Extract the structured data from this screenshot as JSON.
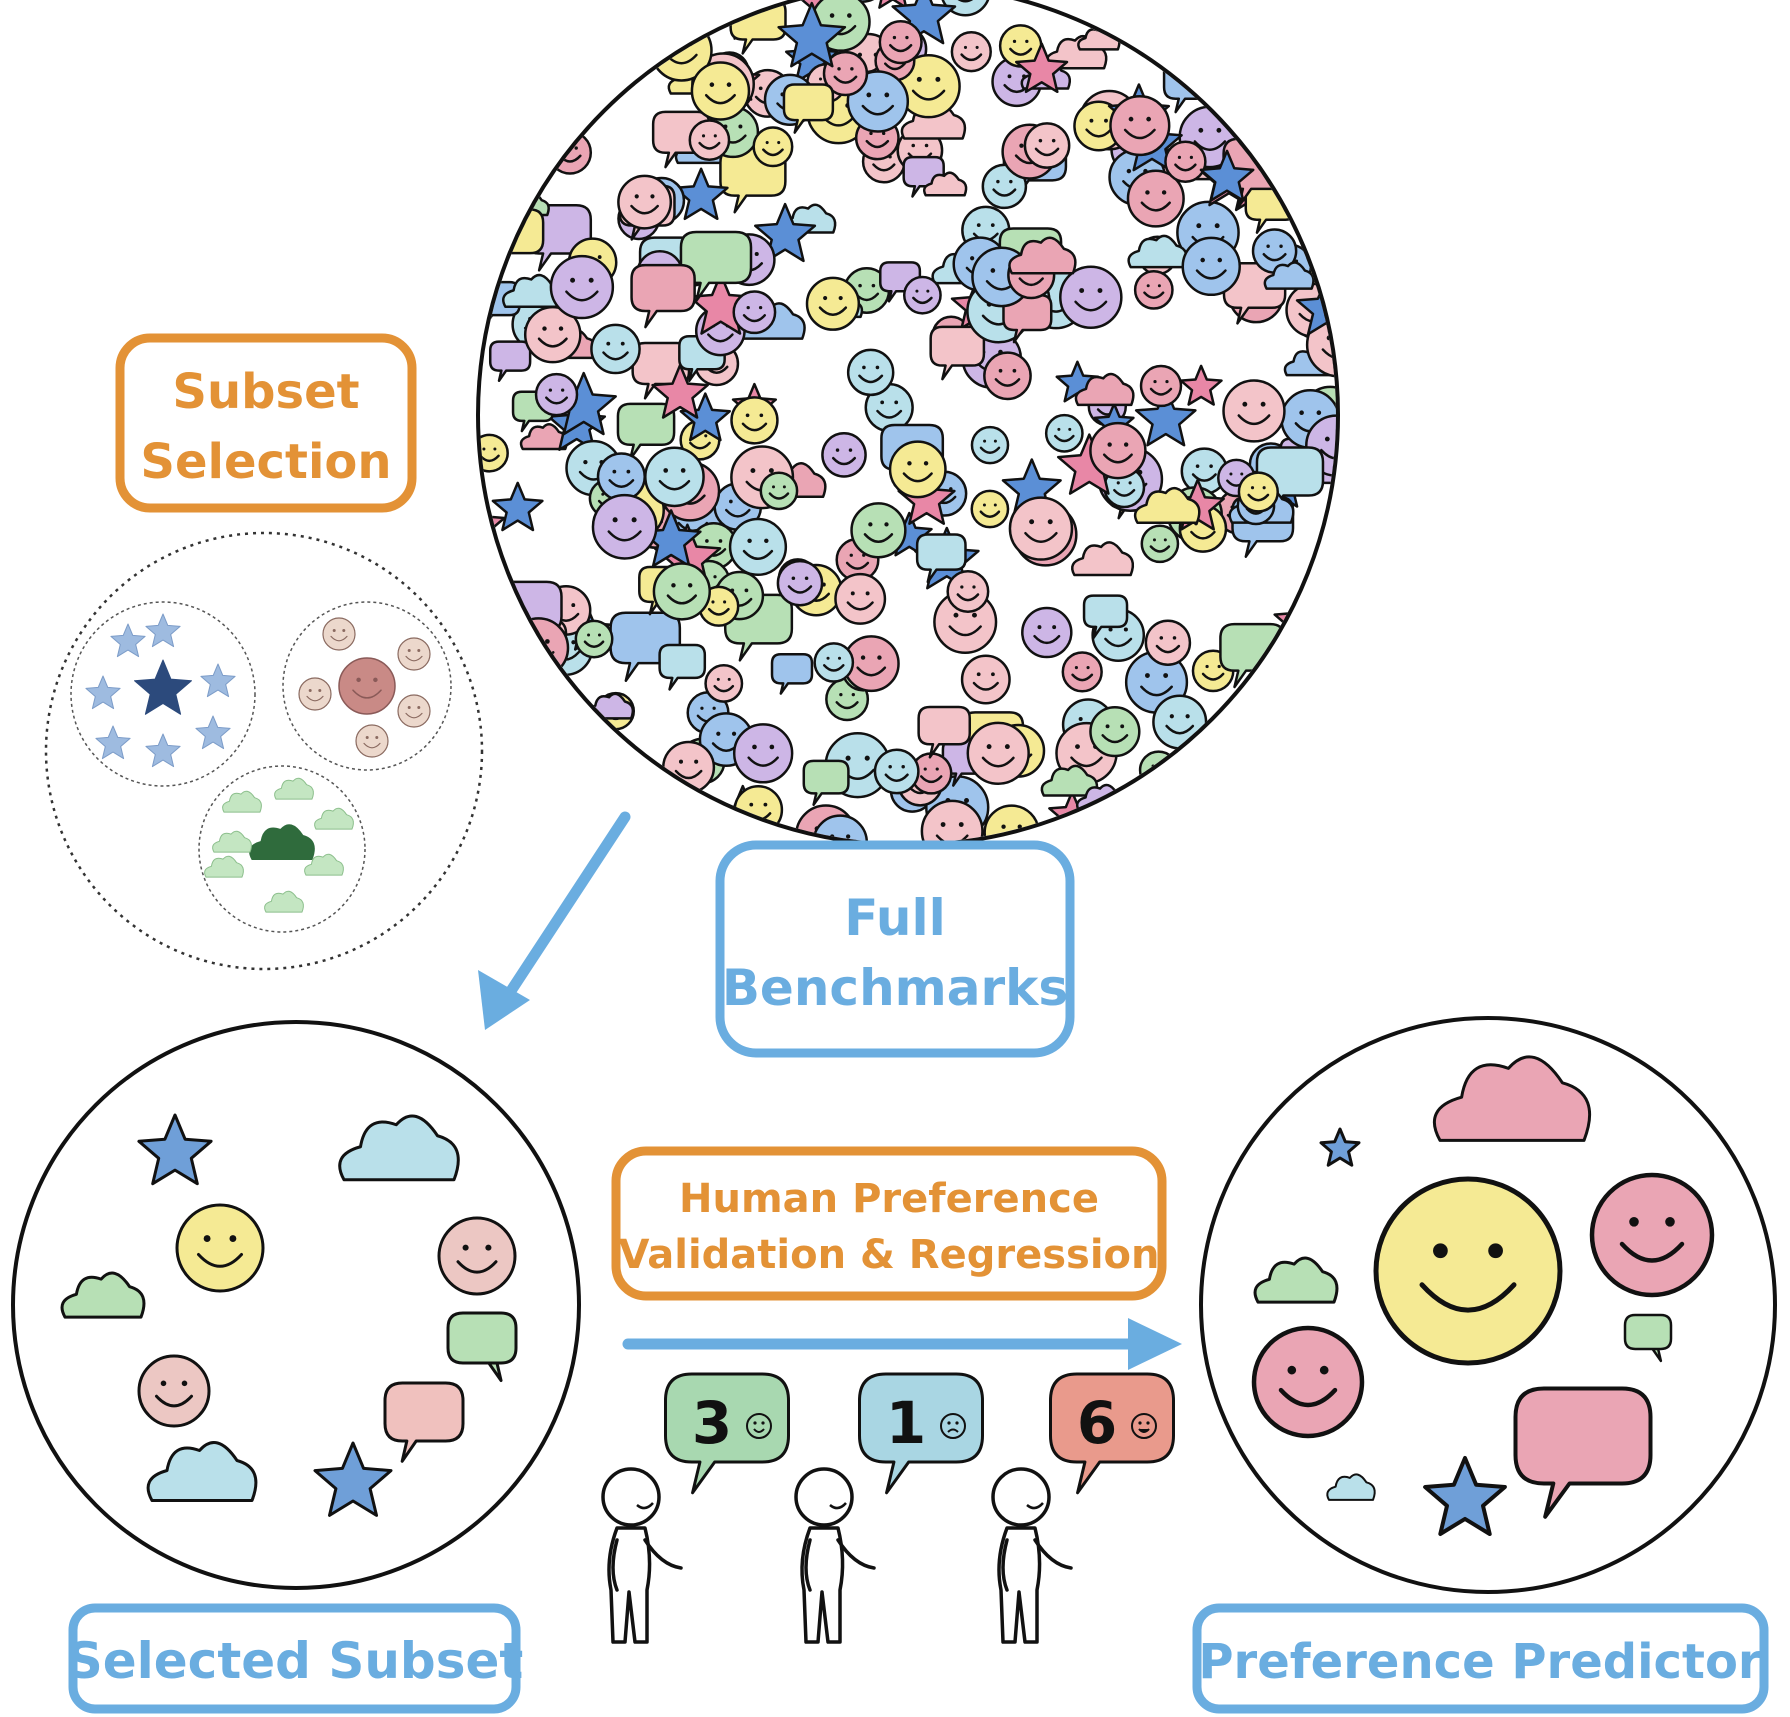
{
  "labels": {
    "subset_selection": [
      "Subset",
      "Selection"
    ],
    "full_benchmarks": [
      "Full",
      "Benchmarks"
    ],
    "human_preference": [
      "Human Preference",
      "Validation & Regression"
    ],
    "selected_subset": "Selected Subset",
    "preference_predictor": "Preference Predictor"
  },
  "ratings": [
    {
      "score": "3",
      "face": "smile-icon",
      "color": "#a8d8b0"
    },
    {
      "score": "1",
      "face": "frown-icon",
      "color": "#a9d6e3"
    },
    {
      "score": "6",
      "face": "grin-icon",
      "color": "#e99a8c"
    }
  ],
  "colors": {
    "orange": "#e39236",
    "blue": "#6aade0",
    "yellow": "#f5ea94",
    "pink": "#eaa5b4",
    "green": "#b7e0b5",
    "lightblue": "#b9e0ea",
    "purple": "#cdb6e6",
    "star_blue": "#6f9fd8",
    "navy": "#2c4a7c",
    "dark_green": "#2f6b3c",
    "mauve": "#c98a86"
  }
}
